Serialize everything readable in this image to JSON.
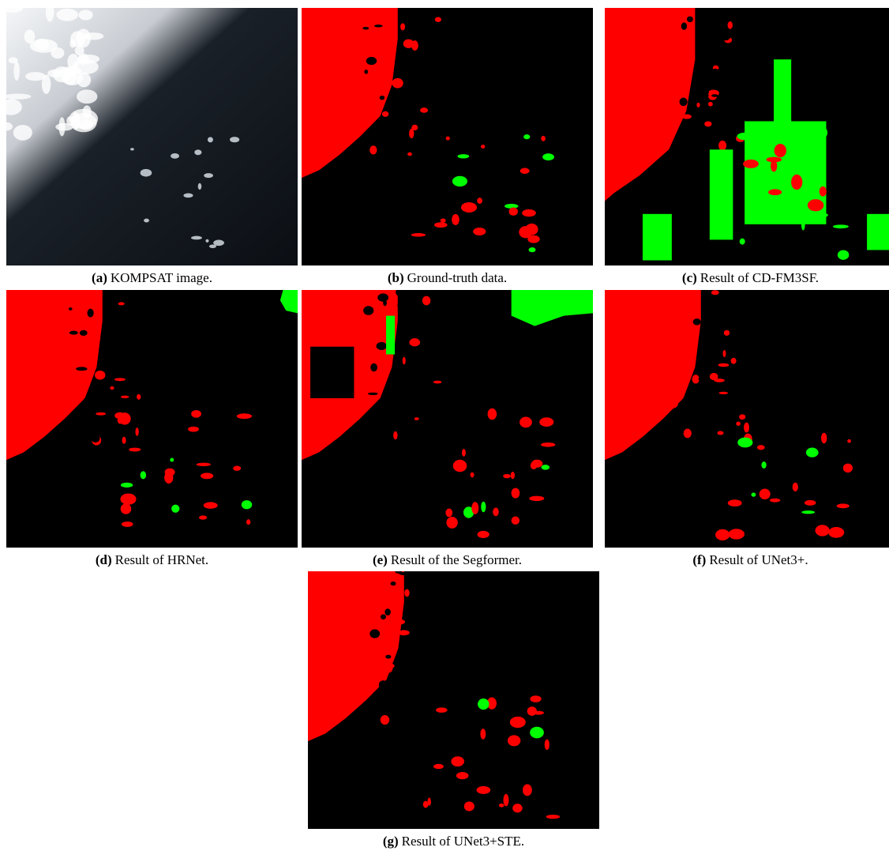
{
  "panels": [
    {
      "label": "(a)",
      "caption": "KOMPSAT image."
    },
    {
      "label": "(b)",
      "caption": "Ground-truth data."
    },
    {
      "label": "(c)",
      "caption": "Result of CD-FM3SF."
    },
    {
      "label": "(d)",
      "caption": "Result of HRNet."
    },
    {
      "label": "(e)",
      "caption": "Result of the Segformer."
    },
    {
      "label": "(f)",
      "caption": "Result of UNet3+."
    },
    {
      "label": "(g)",
      "caption": "Result of UNet3+STE."
    }
  ]
}
